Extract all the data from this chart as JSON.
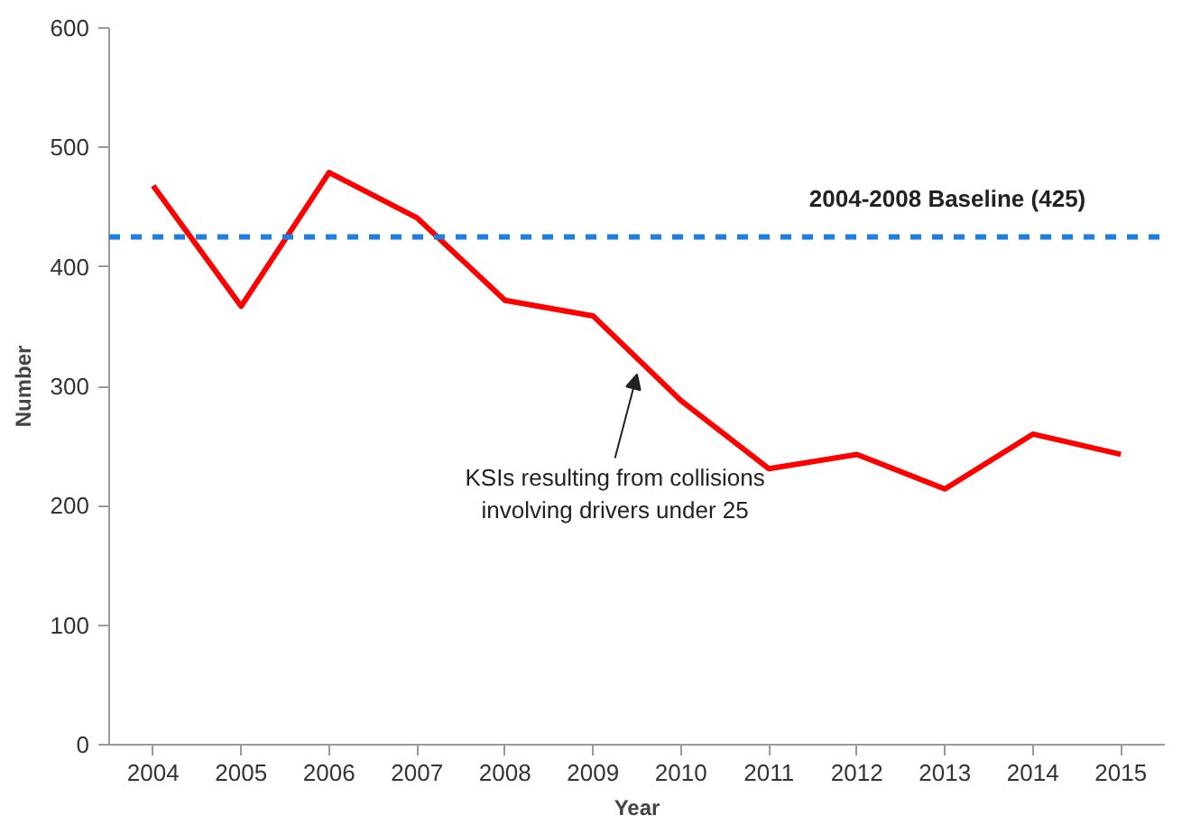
{
  "chart_data": {
    "type": "line",
    "xlabel": "Year",
    "ylabel": "Number",
    "x": [
      2004,
      2005,
      2006,
      2007,
      2008,
      2009,
      2010,
      2011,
      2012,
      2013,
      2014,
      2015
    ],
    "series": [
      {
        "color": "#ff0000",
        "values": [
          468,
          367,
          479,
          441,
          372,
          359,
          288,
          231,
          243,
          214,
          260,
          243
        ]
      }
    ],
    "xlim": [
      2003.5,
      2015.5
    ],
    "xticks": [
      2004,
      2005,
      2006,
      2007,
      2008,
      2009,
      2010,
      2011,
      2012,
      2013,
      2014,
      2015
    ],
    "ylim": [
      0,
      600
    ],
    "yticks": [
      0,
      100,
      200,
      300,
      400,
      500,
      600
    ],
    "marker": "none",
    "line_style": "solid",
    "ref_lines": [
      {
        "axis": "y",
        "value": 425,
        "label": "2004-2008 Baseline (425)",
        "color": "#1f7ee0",
        "line_style": "dashed"
      }
    ],
    "annotations": [
      {
        "text": "KSIs resulting from collisions\ninvolving drivers under 25",
        "x": 2009.5,
        "y": 310
      }
    ]
  }
}
